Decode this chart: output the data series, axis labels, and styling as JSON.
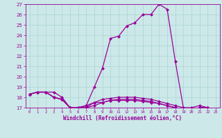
{
  "xlabel": "Windchill (Refroidissement éolien,°C)",
  "background_color": "#cce8e8",
  "line_color": "#990099",
  "x_values": [
    0,
    1,
    2,
    3,
    4,
    5,
    6,
    7,
    8,
    9,
    10,
    11,
    12,
    13,
    14,
    15,
    16,
    17,
    18,
    19,
    20,
    21,
    22,
    23
  ],
  "series": [
    [
      18.3,
      18.5,
      18.5,
      18.5,
      18.0,
      17.0,
      17.0,
      17.2,
      19.0,
      20.8,
      23.7,
      23.9,
      24.9,
      25.2,
      26.0,
      26.0,
      27.0,
      26.5,
      21.5,
      17.0,
      17.0,
      17.2,
      17.0,
      16.8
    ],
    [
      18.3,
      18.5,
      18.5,
      18.0,
      17.8,
      17.0,
      17.0,
      17.0,
      17.2,
      17.5,
      17.7,
      17.7,
      17.7,
      17.7,
      17.6,
      17.5,
      17.4,
      17.2,
      17.0,
      16.9,
      16.8,
      17.0,
      17.0,
      16.8
    ],
    [
      18.3,
      18.5,
      18.5,
      18.0,
      17.8,
      17.0,
      17.0,
      17.0,
      17.5,
      17.5,
      17.7,
      17.8,
      17.8,
      17.8,
      17.7,
      17.6,
      17.4,
      17.2,
      17.0,
      16.8,
      16.8,
      17.0,
      17.0,
      16.8
    ],
    [
      18.3,
      18.5,
      18.5,
      18.0,
      17.8,
      17.0,
      17.0,
      17.2,
      17.5,
      17.8,
      17.9,
      18.0,
      18.0,
      18.0,
      17.9,
      17.8,
      17.6,
      17.4,
      17.2,
      17.0,
      16.8,
      17.0,
      17.0,
      16.8
    ]
  ],
  "ylim": [
    17,
    27
  ],
  "yticks": [
    17,
    18,
    19,
    20,
    21,
    22,
    23,
    24,
    25,
    26,
    27
  ],
  "xticks": [
    0,
    1,
    2,
    3,
    4,
    5,
    6,
    7,
    8,
    9,
    10,
    11,
    12,
    13,
    14,
    15,
    16,
    17,
    18,
    19,
    20,
    21,
    22,
    23
  ],
  "grid_color": "#aad4d4",
  "marker": "D",
  "markersize": 2.0,
  "linewidth": 0.9
}
